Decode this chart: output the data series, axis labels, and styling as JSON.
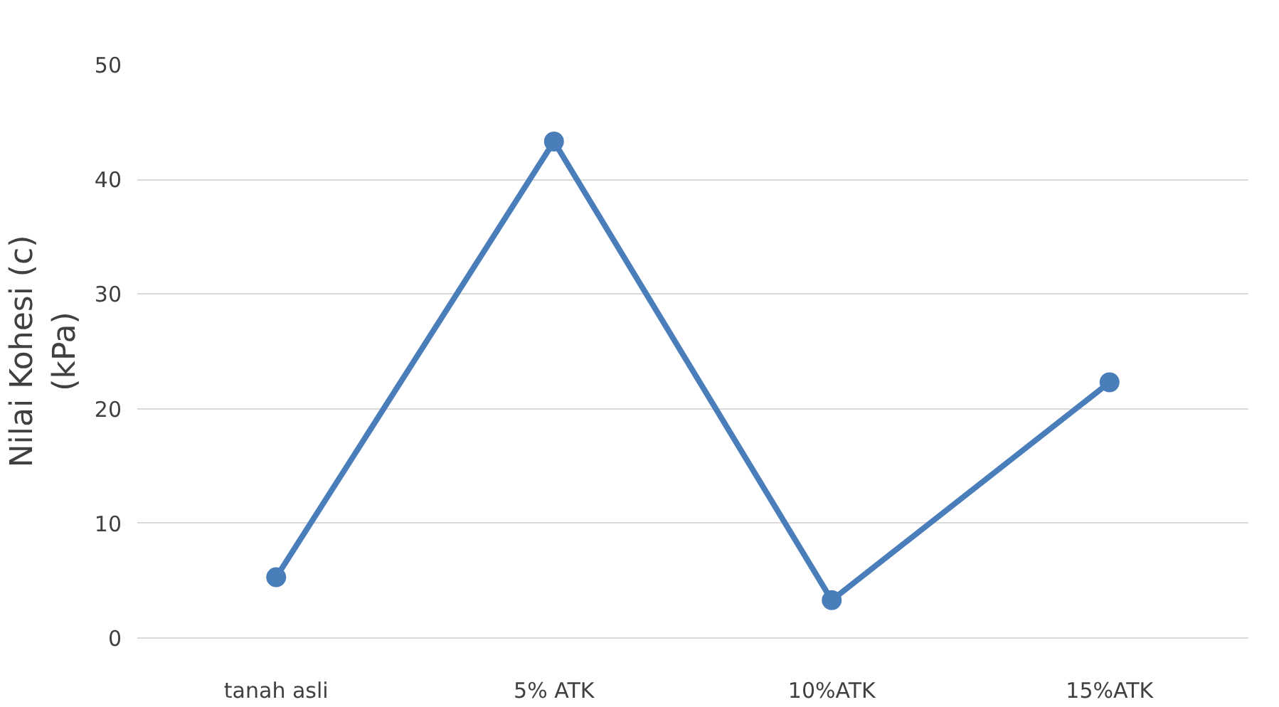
{
  "chart_data": {
    "type": "line",
    "ylabel": "Nilai Kohesi (c)\n(kPa)",
    "categories": [
      "tanah asli",
      "5% ATK",
      "10%ATK",
      "15%ATK"
    ],
    "series": [
      {
        "color": "#4a7ebb",
        "values": [
          5.3,
          43.3,
          3.3,
          22.3
        ]
      }
    ],
    "ylim": [
      0,
      50
    ],
    "yticks": [
      0,
      10,
      20,
      30,
      40,
      50
    ],
    "grid": "y",
    "marker": "circle",
    "line_style": "solid"
  }
}
